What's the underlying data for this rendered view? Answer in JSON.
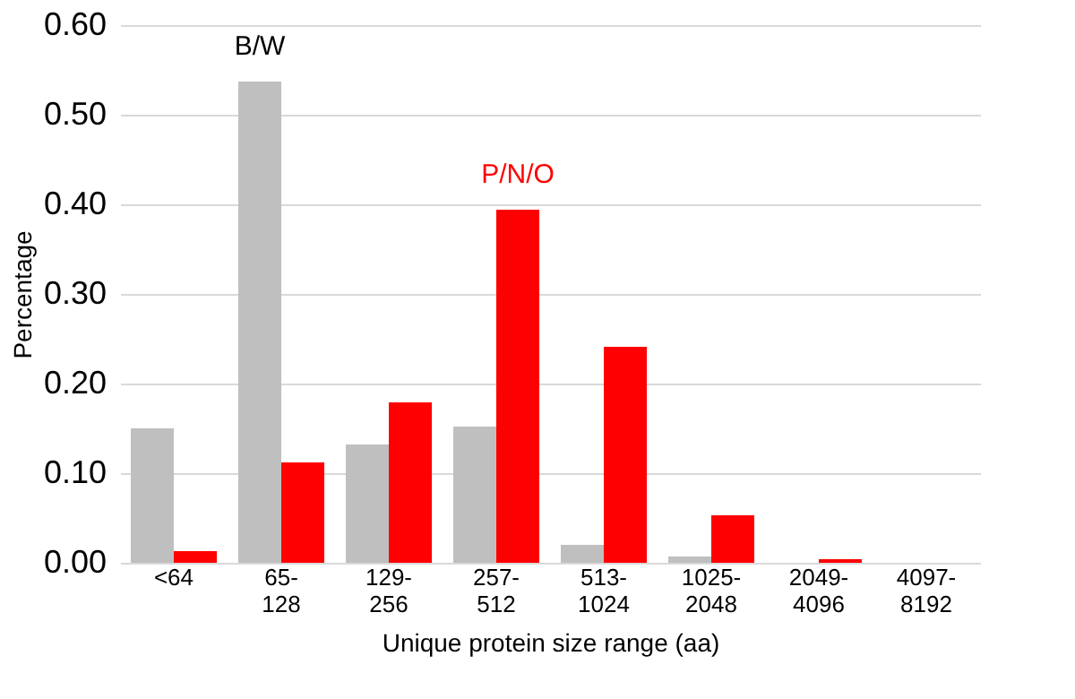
{
  "chart_data": {
    "type": "bar",
    "xlabel": "Unique protein size range (aa)",
    "ylabel": "Percentage",
    "categories": [
      "<64",
      "65-128",
      "129-256",
      "257-512",
      "513-1024",
      "1025-2048",
      "2049-4096",
      "4097-8192"
    ],
    "series": [
      {
        "name": "B/W",
        "color": "#bfbfbf",
        "values": [
          0.15,
          0.537,
          0.132,
          0.152,
          0.02,
          0.007,
          0,
          0
        ]
      },
      {
        "name": "P/N/O",
        "color": "#ff0000",
        "values": [
          0.013,
          0.112,
          0.179,
          0.394,
          0.241,
          0.053,
          0.004,
          0
        ]
      }
    ],
    "ylim": [
      0,
      0.6
    ],
    "yticks": [
      {
        "value": 0,
        "label": "0.00"
      },
      {
        "value": 0.1,
        "label": "0.10"
      },
      {
        "value": 0.2,
        "label": "0.20"
      },
      {
        "value": 0.3,
        "label": "0.30"
      },
      {
        "value": 0.4,
        "label": "0.40"
      },
      {
        "value": 0.5,
        "label": "0.50"
      },
      {
        "value": 0.6,
        "label": "0.60"
      }
    ],
    "grid": "y",
    "legend": false
  }
}
